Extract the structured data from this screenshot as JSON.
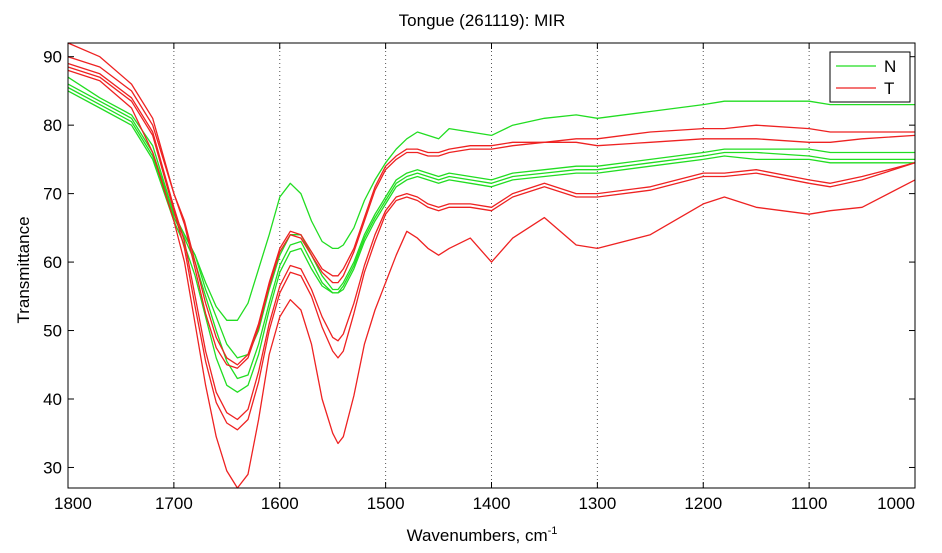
{
  "chart_data": {
    "type": "line",
    "title": "Tongue (261119): MIR",
    "xlabel": "Wavenumbers, cm",
    "xlabel_superscript": "-1",
    "ylabel": "Transmittance",
    "xlim": [
      1800,
      1000
    ],
    "ylim": [
      27,
      92
    ],
    "x_reversed": true,
    "grid": "vertical-dotted",
    "legend_position": "top-right",
    "x_ticks": [
      1800,
      1700,
      1600,
      1500,
      1400,
      1300,
      1200,
      1100,
      1000
    ],
    "y_ticks": [
      30,
      40,
      50,
      60,
      70,
      80,
      90
    ],
    "legend": [
      {
        "label": "N",
        "color": "#22dd22"
      },
      {
        "label": "T",
        "color": "#ee2222"
      }
    ],
    "x": [
      1800,
      1770,
      1740,
      1720,
      1700,
      1690,
      1680,
      1670,
      1660,
      1650,
      1640,
      1630,
      1620,
      1610,
      1600,
      1590,
      1580,
      1570,
      1560,
      1550,
      1545,
      1540,
      1530,
      1520,
      1510,
      1500,
      1490,
      1480,
      1470,
      1460,
      1450,
      1440,
      1420,
      1400,
      1380,
      1350,
      1320,
      1300,
      1250,
      1200,
      1180,
      1150,
      1100,
      1080,
      1050,
      1000
    ],
    "series": [
      {
        "group": "N",
        "color": "#22dd22",
        "values": [
          87,
          84,
          81.5,
          77,
          67,
          64,
          61,
          57,
          53.5,
          51.5,
          51.5,
          54,
          59,
          64,
          69.5,
          71.5,
          70,
          66,
          63,
          62,
          62,
          62.5,
          65,
          69,
          72,
          74.5,
          76.5,
          78,
          79,
          78.5,
          78,
          79.5,
          79,
          78.5,
          80,
          81,
          81.5,
          81,
          82,
          83,
          83.5,
          83.5,
          83.5,
          83,
          83,
          83
        ]
      },
      {
        "group": "N",
        "color": "#22dd22",
        "values": [
          86,
          83.5,
          81,
          76,
          67,
          64,
          61,
          56,
          52,
          48,
          46,
          46.5,
          50,
          56,
          61,
          64,
          64,
          61,
          58,
          56,
          56,
          57,
          60,
          64,
          67,
          69.5,
          72,
          73,
          73.5,
          73,
          72.5,
          73,
          72.5,
          72,
          73,
          73.5,
          74,
          74,
          75,
          76,
          76.5,
          76.5,
          76.5,
          76,
          76,
          76
        ]
      },
      {
        "group": "N",
        "color": "#22dd22",
        "values": [
          85.5,
          83,
          80.5,
          75.5,
          66.5,
          63.5,
          60,
          55,
          50,
          45.5,
          43,
          43.5,
          48,
          54,
          59.5,
          62.5,
          63,
          60,
          57,
          55.5,
          55.5,
          56.5,
          59.5,
          63.5,
          66.5,
          69,
          71.5,
          72.5,
          73,
          72.5,
          72,
          72.5,
          72,
          71.5,
          72.5,
          73,
          73.5,
          73.5,
          74.5,
          75.5,
          76,
          76,
          75.5,
          75,
          75,
          75
        ]
      },
      {
        "group": "N",
        "color": "#22dd22",
        "values": [
          85,
          82.5,
          80,
          75,
          66,
          62.5,
          58,
          52,
          46,
          42,
          41,
          42,
          46.5,
          53,
          58.5,
          61.5,
          62,
          59,
          56.5,
          55.5,
          55.5,
          56,
          59,
          63,
          66,
          68.5,
          71,
          72,
          72.5,
          72,
          71.5,
          72,
          71.5,
          71,
          72,
          72.5,
          73,
          73,
          74,
          75,
          75.5,
          75,
          75,
          74.5,
          74.5,
          74.5
        ]
      },
      {
        "group": "T",
        "color": "#ee2222",
        "values": [
          92,
          90,
          86,
          81,
          70,
          66,
          60,
          54,
          49,
          46,
          45,
          46.5,
          51,
          57,
          62,
          64.5,
          64,
          61.5,
          59,
          58,
          58,
          59,
          62,
          66.5,
          71,
          74,
          75.5,
          76.5,
          76.5,
          76,
          76,
          76.5,
          77,
          77,
          77.5,
          77.5,
          77.5,
          77,
          77.5,
          78,
          78,
          78,
          77.5,
          77.5,
          78,
          78.5
        ]
      },
      {
        "group": "T",
        "color": "#ee2222",
        "values": [
          90,
          88.5,
          85,
          80,
          70,
          65.5,
          59,
          52.5,
          47.5,
          45,
          44.5,
          46,
          50.5,
          56.5,
          61.5,
          64,
          63.5,
          61,
          58.5,
          57,
          57,
          58,
          61.5,
          66,
          70.5,
          73.5,
          75,
          76,
          76,
          75.5,
          75.5,
          76,
          76.5,
          76.5,
          77,
          77.5,
          78,
          78,
          79,
          79.5,
          79.5,
          80,
          79.5,
          79,
          79,
          79
        ]
      },
      {
        "group": "T",
        "color": "#ee2222",
        "values": [
          89,
          87.5,
          84,
          79,
          68,
          63,
          55,
          47,
          41,
          38,
          37,
          38.5,
          44,
          51,
          56.5,
          59.5,
          59,
          56,
          52,
          49,
          48.5,
          49.5,
          54,
          59.5,
          64,
          67.5,
          69.5,
          70,
          69.5,
          68.5,
          68,
          68.5,
          68.5,
          68,
          70,
          71.5,
          70,
          70,
          71,
          73,
          73,
          73.5,
          72,
          71.5,
          72.5,
          74.5
        ]
      },
      {
        "group": "T",
        "color": "#ee2222",
        "values": [
          88.5,
          87,
          83.5,
          78.5,
          67.5,
          62,
          53.5,
          45.5,
          39.5,
          36.5,
          35.5,
          37,
          42.5,
          50,
          55.5,
          58.5,
          58,
          55,
          50.5,
          47,
          46,
          47,
          52.5,
          58.5,
          63,
          67,
          69,
          69.5,
          69,
          68,
          67.5,
          68,
          68,
          67.5,
          69.5,
          71,
          69.5,
          69.5,
          70.5,
          72.5,
          72.5,
          73,
          71.5,
          71,
          72,
          74.5
        ]
      },
      {
        "group": "T",
        "color": "#ee2222",
        "values": [
          88,
          86.5,
          82.5,
          76,
          66,
          60,
          51,
          42,
          34.5,
          29.5,
          27,
          29,
          37,
          46.5,
          52,
          54.5,
          53,
          48,
          40,
          35,
          33.5,
          34.5,
          40.5,
          48,
          53,
          57,
          61,
          64.5,
          63.5,
          62,
          61,
          62,
          63.5,
          60,
          63.5,
          66.5,
          62.5,
          62,
          64,
          68.5,
          69.5,
          68,
          67,
          67.5,
          68,
          72
        ]
      }
    ]
  }
}
